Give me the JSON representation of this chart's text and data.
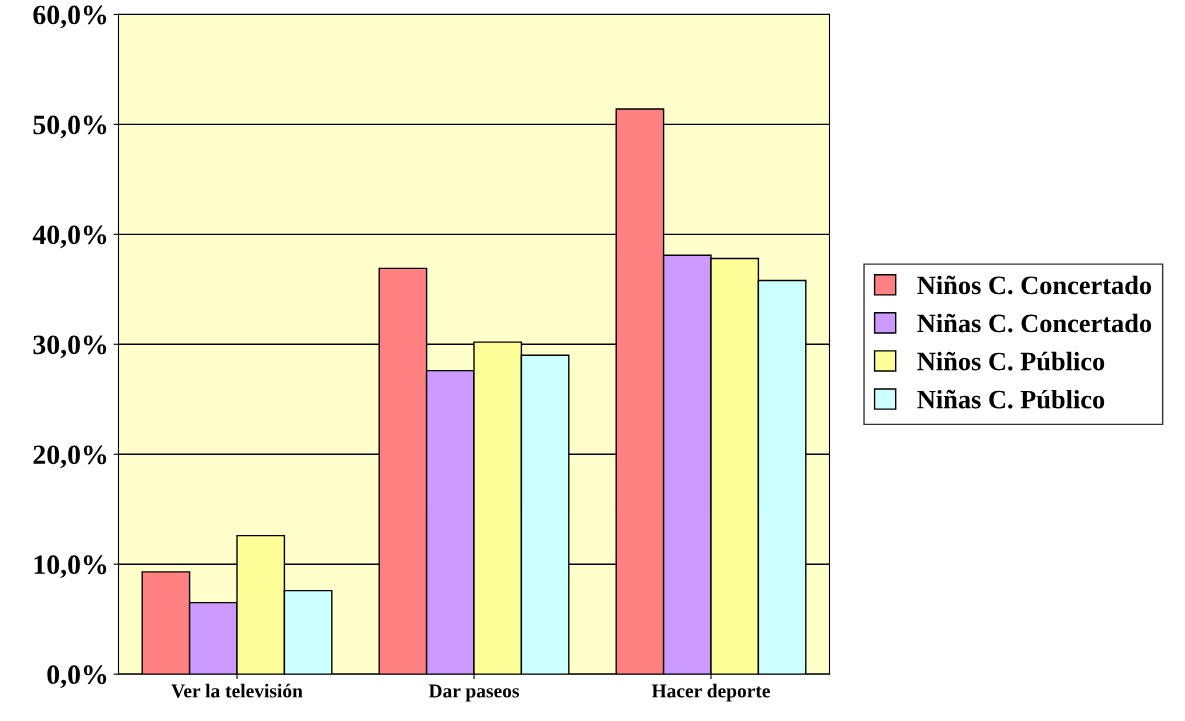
{
  "chart_data": {
    "type": "bar",
    "categories": [
      "Ver la televisión",
      "Dar paseos",
      "Hacer deporte"
    ],
    "series": [
      {
        "name": "Niños C. Concertado",
        "color": "#ff8080",
        "values": [
          9.3,
          36.9,
          51.4
        ]
      },
      {
        "name": "Niñas C. Concertado",
        "color": "#cc99ff",
        "values": [
          6.5,
          27.6,
          38.1
        ]
      },
      {
        "name": "Niños C. Público",
        "color": "#ffff99",
        "values": [
          12.6,
          30.2,
          37.8
        ]
      },
      {
        "name": "Niñas C. Público",
        "color": "#ccffff",
        "values": [
          7.6,
          29.0,
          35.8
        ]
      }
    ],
    "ylim": [
      0,
      60
    ],
    "yticks": [
      {
        "value": 0,
        "label": "0,0%"
      },
      {
        "value": 10,
        "label": "10,0%"
      },
      {
        "value": 20,
        "label": "20,0%"
      },
      {
        "value": 30,
        "label": "30,0%"
      },
      {
        "value": 40,
        "label": "40,0%"
      },
      {
        "value": 50,
        "label": "50,0%"
      },
      {
        "value": 60,
        "label": "60,0%"
      }
    ],
    "grid": "y",
    "legend": "right"
  }
}
